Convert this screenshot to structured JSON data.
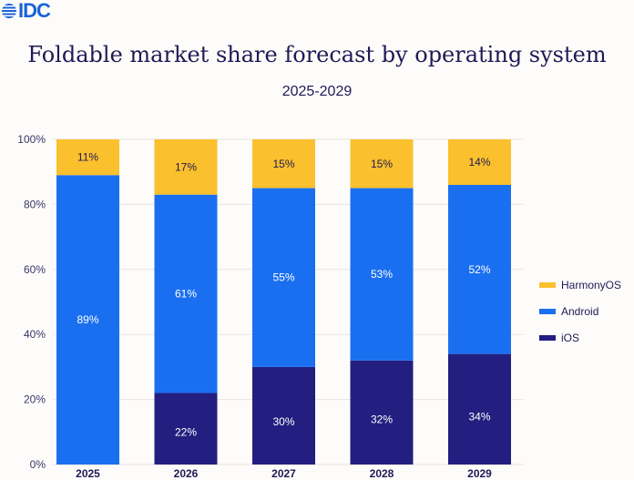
{
  "header": {
    "logo": "IDC",
    "title": "Foldable market share forecast by operating system",
    "subtitle": "2025-2029"
  },
  "colors": {
    "HarmonyOS": "#fbc02d",
    "Android": "#1a6ff0",
    "iOS": "#221f80",
    "text": "#1f1a55"
  },
  "legend": [
    {
      "label": "HarmonyOS",
      "color": "#fbc02d"
    },
    {
      "label": "Android",
      "color": "#1a6ff0"
    },
    {
      "label": "iOS",
      "color": "#221f80"
    }
  ],
  "chart_data": {
    "type": "bar",
    "stacked": true,
    "title": "Foldable market share forecast by operating system",
    "subtitle": "2025-2029",
    "categories": [
      "2025",
      "2026",
      "2027",
      "2028",
      "2029"
    ],
    "series": [
      {
        "name": "iOS",
        "values": [
          0,
          22,
          30,
          32,
          34
        ],
        "labels": [
          "",
          "22%",
          "30%",
          "32%",
          "34%"
        ]
      },
      {
        "name": "Android",
        "values": [
          89,
          61,
          55,
          53,
          52
        ],
        "labels": [
          "89%",
          "61%",
          "55%",
          "53%",
          "52%"
        ]
      },
      {
        "name": "HarmonyOS",
        "values": [
          11,
          17,
          15,
          15,
          14
        ],
        "labels": [
          "11%",
          "17%",
          "15%",
          "15%",
          "14%"
        ]
      }
    ],
    "yticks": [
      "0%",
      "20%",
      "40%",
      "60%",
      "80%",
      "100%"
    ],
    "ylim": [
      0,
      100
    ],
    "xlabel": "",
    "ylabel": "",
    "grid": true,
    "legend_position": "right"
  }
}
